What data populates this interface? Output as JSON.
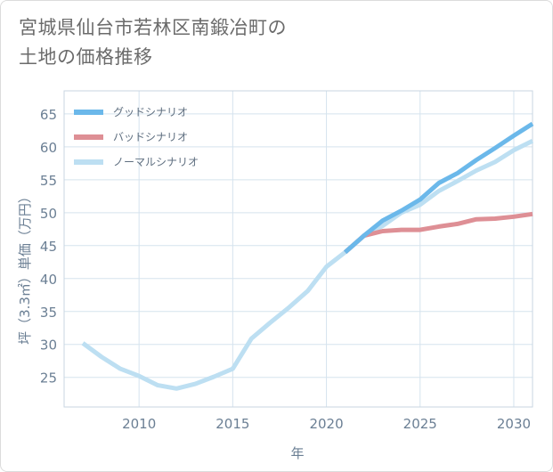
{
  "title": {
    "line1": "宮城県仙台市若林区南鍛冶町の",
    "line2": "土地の価格推移"
  },
  "colors": {
    "good": "#6bb8ea",
    "bad": "#de8f95",
    "normal": "#bddff2",
    "grid": "#d5e3ee",
    "plot_border": "#c8d6e2"
  },
  "chart_data": {
    "type": "line",
    "xlabel": "年",
    "ylabel": "坪（3.3㎡）単価（万円）",
    "xlim": [
      2006,
      2031
    ],
    "ylim": [
      20.5,
      68.5
    ],
    "xticks": [
      2010,
      2015,
      2020,
      2025,
      2030
    ],
    "yticks": [
      25,
      30,
      35,
      40,
      45,
      50,
      55,
      60,
      65
    ],
    "grid": true,
    "legend_position": "top-left",
    "series": [
      {
        "key": "good",
        "name": "グッドシナリオ",
        "x": [
          2021,
          2022,
          2023,
          2024,
          2025,
          2026,
          2027,
          2028,
          2029,
          2030,
          2031
        ],
        "values": [
          44.0,
          46.5,
          48.8,
          50.3,
          52.0,
          54.5,
          56.0,
          58.0,
          59.8,
          61.7,
          63.5
        ]
      },
      {
        "key": "bad",
        "name": "バッドシナリオ",
        "x": [
          2021,
          2022,
          2023,
          2024,
          2025,
          2026,
          2027,
          2028,
          2029,
          2030,
          2031
        ],
        "values": [
          44.0,
          46.5,
          47.2,
          47.4,
          47.4,
          47.9,
          48.3,
          49.0,
          49.1,
          49.4,
          49.8
        ]
      },
      {
        "key": "normal",
        "name": "ノーマルシナリオ",
        "x": [
          2007,
          2008,
          2009,
          2010,
          2011,
          2012,
          2013,
          2014,
          2015,
          2016,
          2017,
          2018,
          2019,
          2020,
          2021,
          2022,
          2023,
          2024,
          2025,
          2026,
          2027,
          2028,
          2029,
          2030,
          2031
        ],
        "values": [
          30.2,
          28.1,
          26.3,
          25.2,
          23.8,
          23.3,
          24.0,
          25.1,
          26.3,
          30.9,
          33.3,
          35.6,
          38.1,
          41.8,
          44.0,
          46.5,
          48.0,
          50.0,
          51.2,
          53.3,
          54.8,
          56.4,
          57.7,
          59.5,
          60.9
        ]
      }
    ]
  }
}
